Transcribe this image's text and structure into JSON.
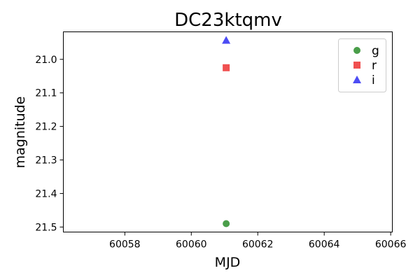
{
  "chart_data": {
    "type": "scatter",
    "title": "DC23ktqmv",
    "xlabel": "MJD",
    "ylabel": "magnitude",
    "xlim": [
      60056.15,
      60066.05
    ],
    "ylim": [
      21.515,
      20.918
    ],
    "y_inverted": true,
    "xticks": [
      60058,
      60060,
      60062,
      60064,
      60066
    ],
    "yticks": [
      21.0,
      21.1,
      21.2,
      21.3,
      21.4,
      21.5
    ],
    "ytick_labels": [
      "21.0",
      "21.1",
      "21.2",
      "21.3",
      "21.4",
      "21.5"
    ],
    "grid": false,
    "legend_position": "top-right",
    "series": [
      {
        "name": "g",
        "marker": "circle",
        "color": "#4a9e4a",
        "points": [
          {
            "x": 60061.05,
            "y": 21.49
          }
        ]
      },
      {
        "name": "r",
        "marker": "square",
        "color": "#f05050",
        "points": [
          {
            "x": 60061.05,
            "y": 21.025
          }
        ]
      },
      {
        "name": "i",
        "marker": "triangle",
        "color": "#4c4cf4",
        "points": [
          {
            "x": 60061.05,
            "y": 20.943
          }
        ]
      }
    ]
  }
}
